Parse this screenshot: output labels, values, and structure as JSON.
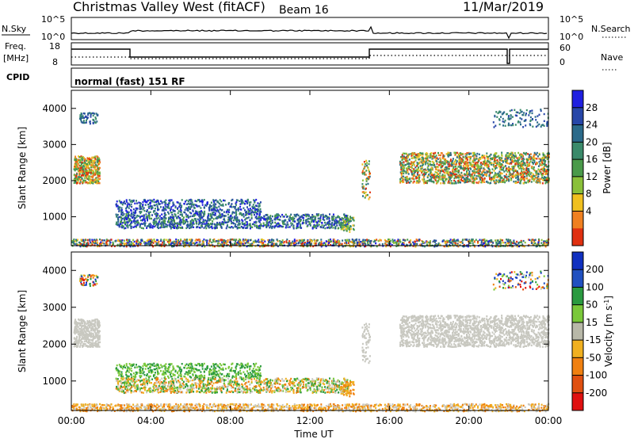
{
  "header": {
    "title": "Christmas Valley West (fitACF)",
    "beam": "Beam 16",
    "date": "11/Mar/2019"
  },
  "top_panels": {
    "nsky_label": "N.Sky",
    "nsky_ticks": [
      "10^5",
      "10^0"
    ],
    "nsearch_label": "N.Search",
    "nsearch_ticks": [
      "10^5",
      "10^0"
    ],
    "freq_label_1": "Freq.",
    "freq_label_2": "[MHz]",
    "freq_ticks": [
      "18",
      "8"
    ],
    "nave_label": "Nave",
    "nave_ticks": [
      "60",
      "0"
    ],
    "cpid_label": "CPID",
    "cpid_text": "normal (fast) 151 RF"
  },
  "colors": {
    "power_scale": [
      "#1f1fe0",
      "#2746a8",
      "#2b6a8a",
      "#3a8a6a",
      "#4a9a4a",
      "#8ac03a",
      "#f0c020",
      "#f08020",
      "#e03010"
    ],
    "velocity_scale": [
      "#1030c0",
      "#2050c0",
      "#2a9a40",
      "#7ac83a",
      "#b8b8a8",
      "#f0b020",
      "#f08010",
      "#e05010",
      "#e01010"
    ],
    "ground": "#c8c8c0"
  },
  "chart_data": [
    {
      "type": "heatmap",
      "name": "power",
      "ylabel": "Slant Range [km]",
      "y_ticks": [
        "4000",
        "3000",
        "2000",
        "1000"
      ],
      "y_tick_values": [
        4000,
        3000,
        2000,
        1000
      ],
      "ylim": [
        200,
        4500
      ],
      "xlim": [
        0,
        24
      ],
      "colorbar": {
        "label": "Power [dB]",
        "ticks": [
          "28",
          "24",
          "20",
          "16",
          "12",
          "8",
          "4"
        ],
        "range": [
          0,
          32
        ]
      }
    },
    {
      "type": "heatmap",
      "name": "velocity",
      "ylabel": "Slant Range [km]",
      "y_ticks": [
        "4000",
        "3000",
        "2000",
        "1000"
      ],
      "y_tick_values": [
        4000,
        3000,
        2000,
        1000
      ],
      "ylim": [
        200,
        4500
      ],
      "xlim": [
        0,
        24
      ],
      "colorbar": {
        "label": "Velocity [m s^-1]",
        "ticks": [
          "200",
          "100",
          "50",
          "15",
          "-15",
          "-50",
          "-100",
          "-200"
        ]
      }
    }
  ],
  "x_axis": {
    "ticks": [
      "00:00",
      "04:00",
      "08:00",
      "12:00",
      "16:00",
      "20:00",
      "00:00"
    ],
    "label": "Time UT"
  }
}
